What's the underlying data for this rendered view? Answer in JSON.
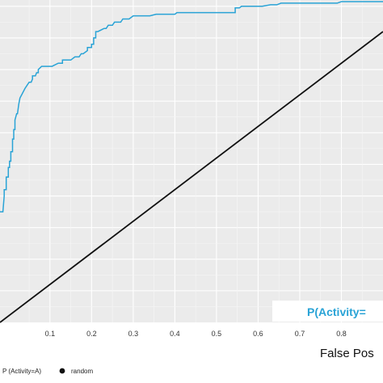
{
  "chart_data": {
    "type": "line",
    "title": "",
    "xlabel": "False Pos",
    "ylabel": "",
    "xlim": [
      -0.02,
      0.9
    ],
    "ylim": [
      0.0,
      1.02
    ],
    "x_ticks": [
      "0.1",
      "0.2",
      "0.3",
      "0.4",
      "0.5",
      "0.6",
      "0.7",
      "0.8"
    ],
    "grid": true,
    "legend_placement": "bottom-left",
    "annotation": "P(Activity=",
    "series": [
      {
        "name": "P (Activity=A)",
        "color": "#29a3d6",
        "x": [
          -0.02,
          -0.013,
          -0.01,
          -0.01,
          -0.005,
          -0.005,
          0.0,
          0.0,
          0.003,
          0.003,
          0.006,
          0.006,
          0.01,
          0.01,
          0.013,
          0.013,
          0.016,
          0.016,
          0.02,
          0.022,
          0.025,
          0.028,
          0.032,
          0.04,
          0.045,
          0.05,
          0.055,
          0.058,
          0.058,
          0.065,
          0.068,
          0.072,
          0.072,
          0.08,
          0.09,
          0.105,
          0.12,
          0.13,
          0.13,
          0.15,
          0.16,
          0.17,
          0.175,
          0.18,
          0.19,
          0.19,
          0.2,
          0.2,
          0.205,
          0.205,
          0.21,
          0.21,
          0.215,
          0.23,
          0.235,
          0.24,
          0.25,
          0.255,
          0.27,
          0.275,
          0.28,
          0.29,
          0.3,
          0.305,
          0.33,
          0.34,
          0.355,
          0.38,
          0.4,
          0.405,
          0.42,
          0.43,
          0.46,
          0.48,
          0.5,
          0.53,
          0.545,
          0.545,
          0.555,
          0.56,
          0.56,
          0.58,
          0.61,
          0.63,
          0.645,
          0.655,
          0.69,
          0.73,
          0.76,
          0.79,
          0.8,
          0.82,
          0.86,
          0.9
        ],
        "y": [
          0.35,
          0.35,
          0.4,
          0.42,
          0.42,
          0.46,
          0.46,
          0.49,
          0.49,
          0.51,
          0.51,
          0.54,
          0.54,
          0.58,
          0.58,
          0.61,
          0.61,
          0.64,
          0.66,
          0.66,
          0.69,
          0.71,
          0.72,
          0.74,
          0.75,
          0.76,
          0.76,
          0.77,
          0.78,
          0.78,
          0.79,
          0.79,
          0.8,
          0.81,
          0.81,
          0.81,
          0.82,
          0.82,
          0.83,
          0.83,
          0.84,
          0.84,
          0.85,
          0.85,
          0.86,
          0.87,
          0.87,
          0.88,
          0.88,
          0.9,
          0.9,
          0.92,
          0.92,
          0.93,
          0.93,
          0.94,
          0.94,
          0.95,
          0.95,
          0.96,
          0.96,
          0.96,
          0.97,
          0.97,
          0.97,
          0.97,
          0.975,
          0.975,
          0.975,
          0.98,
          0.98,
          0.98,
          0.98,
          0.98,
          0.98,
          0.98,
          0.98,
          0.995,
          0.995,
          1.0,
          1.0,
          1.0,
          1.0,
          1.005,
          1.005,
          1.01,
          1.01,
          1.01,
          1.01,
          1.01,
          1.015,
          1.015,
          1.015,
          1.015
        ]
      },
      {
        "name": "random",
        "color": "#111111",
        "x": [
          -0.02,
          0.9
        ],
        "y": [
          0.0,
          0.92
        ]
      }
    ]
  }
}
